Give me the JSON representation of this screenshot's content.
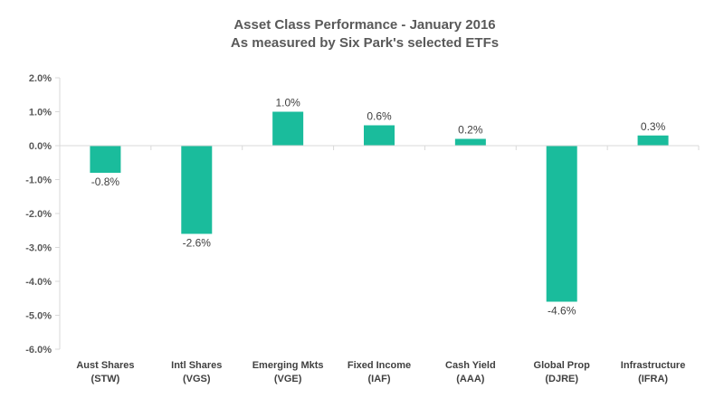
{
  "chart_data": {
    "type": "bar",
    "title": [
      "Asset Class Performance - January 2016",
      "As measured by Six Park's selected ETFs"
    ],
    "xlabel": "",
    "ylabel": "",
    "categories": [
      [
        "Aust Shares",
        "(STW)"
      ],
      [
        "Intl Shares",
        "(VGS)"
      ],
      [
        "Emerging Mkts",
        "(VGE)"
      ],
      [
        "Fixed Income",
        "(IAF)"
      ],
      [
        "Cash Yield",
        "(AAA)"
      ],
      [
        "Global Prop",
        "(DJRE)"
      ],
      [
        "Infrastructure",
        "(IFRA)"
      ]
    ],
    "values": [
      -0.8,
      -2.6,
      1.0,
      0.6,
      0.2,
      -4.6,
      0.3
    ],
    "data_labels": [
      "-0.8%",
      "-2.6%",
      "1.0%",
      "0.6%",
      "0.2%",
      "-4.6%",
      "0.3%"
    ],
    "y_ticks": [
      2.0,
      1.0,
      0.0,
      -1.0,
      -2.0,
      -3.0,
      -4.0,
      -5.0,
      -6.0
    ],
    "y_tick_labels": [
      "2.0%",
      "1.0%",
      "0.0%",
      "-1.0%",
      "-2.0%",
      "-3.0%",
      "-4.0%",
      "-5.0%",
      "-6.0%"
    ],
    "ylim": [
      -6.0,
      2.0
    ],
    "grid": false,
    "legend": "none",
    "colors": {
      "bar": "#1abc9c",
      "axis": "#d9d9d9",
      "text": "#595959"
    }
  }
}
